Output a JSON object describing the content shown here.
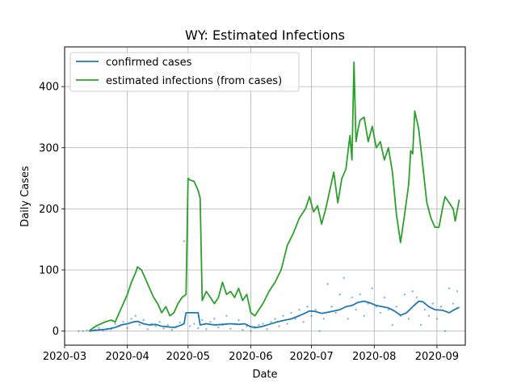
{
  "chart_data": {
    "type": "line",
    "title": "WY: Estimated Infections",
    "xlabel": "Date",
    "ylabel": "Daily Cases",
    "xlim": [
      "2020-03-01",
      "2020-09-15"
    ],
    "ylim": [
      -23,
      465
    ],
    "x_ticks": [
      "2020-03",
      "2020-04",
      "2020-05",
      "2020-06",
      "2020-07",
      "2020-08",
      "2020-09"
    ],
    "x_tick_dates": [
      "2020-03-01",
      "2020-04-01",
      "2020-05-01",
      "2020-06-01",
      "2020-07-01",
      "2020-08-01",
      "2020-09-01"
    ],
    "y_ticks": [
      0,
      100,
      200,
      300,
      400
    ],
    "grid": true,
    "legend_position": "upper-left",
    "colors": {
      "confirmed": "#1f77b4",
      "estimated": "#2ca02c"
    },
    "series": [
      {
        "name": "confirmed cases",
        "color": "#1f77b4",
        "points": [
          [
            "2020-03-13",
            0
          ],
          [
            "2020-03-15",
            1
          ],
          [
            "2020-03-18",
            2
          ],
          [
            "2020-03-22",
            3
          ],
          [
            "2020-03-26",
            6
          ],
          [
            "2020-03-29",
            10
          ],
          [
            "2020-04-01",
            12
          ],
          [
            "2020-04-04",
            15
          ],
          [
            "2020-04-06",
            16
          ],
          [
            "2020-04-09",
            12
          ],
          [
            "2020-04-12",
            10
          ],
          [
            "2020-04-15",
            11
          ],
          [
            "2020-04-18",
            8
          ],
          [
            "2020-04-21",
            7
          ],
          [
            "2020-04-24",
            6
          ],
          [
            "2020-04-27",
            9
          ],
          [
            "2020-04-29",
            12
          ],
          [
            "2020-04-30",
            30
          ],
          [
            "2020-05-03",
            30
          ],
          [
            "2020-05-06",
            30
          ],
          [
            "2020-05-07",
            10
          ],
          [
            "2020-05-10",
            12
          ],
          [
            "2020-05-14",
            10
          ],
          [
            "2020-05-18",
            11
          ],
          [
            "2020-05-22",
            12
          ],
          [
            "2020-05-26",
            11
          ],
          [
            "2020-05-29",
            12
          ],
          [
            "2020-06-01",
            7
          ],
          [
            "2020-06-04",
            6
          ],
          [
            "2020-06-07",
            8
          ],
          [
            "2020-06-10",
            11
          ],
          [
            "2020-06-14",
            15
          ],
          [
            "2020-06-18",
            18
          ],
          [
            "2020-06-21",
            20
          ],
          [
            "2020-06-24",
            24
          ],
          [
            "2020-06-27",
            28
          ],
          [
            "2020-06-30",
            33
          ],
          [
            "2020-07-03",
            32
          ],
          [
            "2020-07-06",
            29
          ],
          [
            "2020-07-09",
            31
          ],
          [
            "2020-07-12",
            33
          ],
          [
            "2020-07-15",
            35
          ],
          [
            "2020-07-18",
            40
          ],
          [
            "2020-07-21",
            42
          ],
          [
            "2020-07-24",
            47
          ],
          [
            "2020-07-27",
            49
          ],
          [
            "2020-07-30",
            46
          ],
          [
            "2020-08-02",
            42
          ],
          [
            "2020-08-05",
            40
          ],
          [
            "2020-08-08",
            38
          ],
          [
            "2020-08-11",
            33
          ],
          [
            "2020-08-14",
            26
          ],
          [
            "2020-08-17",
            30
          ],
          [
            "2020-08-20",
            40
          ],
          [
            "2020-08-23",
            49
          ],
          [
            "2020-08-25",
            48
          ],
          [
            "2020-08-28",
            40
          ],
          [
            "2020-08-31",
            35
          ],
          [
            "2020-09-04",
            34
          ],
          [
            "2020-09-07",
            30
          ],
          [
            "2020-09-09",
            34
          ],
          [
            "2020-09-12",
            39
          ]
        ]
      },
      {
        "name": "estimated infections (from cases)",
        "color": "#2ca02c",
        "points": [
          [
            "2020-03-13",
            0
          ],
          [
            "2020-03-15",
            5
          ],
          [
            "2020-03-17",
            9
          ],
          [
            "2020-03-19",
            12
          ],
          [
            "2020-03-21",
            15
          ],
          [
            "2020-03-24",
            18
          ],
          [
            "2020-03-26",
            15
          ],
          [
            "2020-03-28",
            30
          ],
          [
            "2020-03-30",
            45
          ],
          [
            "2020-04-01",
            60
          ],
          [
            "2020-04-03",
            80
          ],
          [
            "2020-04-05",
            95
          ],
          [
            "2020-04-06",
            105
          ],
          [
            "2020-04-08",
            100
          ],
          [
            "2020-04-10",
            85
          ],
          [
            "2020-04-12",
            70
          ],
          [
            "2020-04-14",
            55
          ],
          [
            "2020-04-16",
            45
          ],
          [
            "2020-04-18",
            30
          ],
          [
            "2020-04-20",
            40
          ],
          [
            "2020-04-22",
            25
          ],
          [
            "2020-04-24",
            30
          ],
          [
            "2020-04-26",
            45
          ],
          [
            "2020-04-28",
            55
          ],
          [
            "2020-04-30",
            60
          ],
          [
            "2020-05-01",
            250
          ],
          [
            "2020-05-02",
            247
          ],
          [
            "2020-05-04",
            245
          ],
          [
            "2020-05-06",
            230
          ],
          [
            "2020-05-07",
            217
          ],
          [
            "2020-05-08",
            50
          ],
          [
            "2020-05-10",
            65
          ],
          [
            "2020-05-12",
            55
          ],
          [
            "2020-05-14",
            45
          ],
          [
            "2020-05-16",
            55
          ],
          [
            "2020-05-18",
            80
          ],
          [
            "2020-05-20",
            60
          ],
          [
            "2020-05-22",
            65
          ],
          [
            "2020-05-24",
            55
          ],
          [
            "2020-05-26",
            70
          ],
          [
            "2020-05-28",
            50
          ],
          [
            "2020-05-30",
            60
          ],
          [
            "2020-06-01",
            30
          ],
          [
            "2020-06-03",
            25
          ],
          [
            "2020-06-05",
            35
          ],
          [
            "2020-06-07",
            45
          ],
          [
            "2020-06-10",
            65
          ],
          [
            "2020-06-13",
            80
          ],
          [
            "2020-06-16",
            100
          ],
          [
            "2020-06-19",
            140
          ],
          [
            "2020-06-22",
            160
          ],
          [
            "2020-06-25",
            185
          ],
          [
            "2020-06-28",
            200
          ],
          [
            "2020-06-30",
            220
          ],
          [
            "2020-07-02",
            195
          ],
          [
            "2020-07-04",
            205
          ],
          [
            "2020-07-06",
            175
          ],
          [
            "2020-07-08",
            200
          ],
          [
            "2020-07-10",
            230
          ],
          [
            "2020-07-12",
            260
          ],
          [
            "2020-07-14",
            210
          ],
          [
            "2020-07-16",
            250
          ],
          [
            "2020-07-18",
            265
          ],
          [
            "2020-07-20",
            320
          ],
          [
            "2020-07-21",
            280
          ],
          [
            "2020-07-22",
            440
          ],
          [
            "2020-07-23",
            310
          ],
          [
            "2020-07-24",
            330
          ],
          [
            "2020-07-25",
            345
          ],
          [
            "2020-07-27",
            350
          ],
          [
            "2020-07-29",
            310
          ],
          [
            "2020-07-31",
            335
          ],
          [
            "2020-08-02",
            300
          ],
          [
            "2020-08-04",
            310
          ],
          [
            "2020-08-06",
            280
          ],
          [
            "2020-08-08",
            300
          ],
          [
            "2020-08-10",
            260
          ],
          [
            "2020-08-12",
            190
          ],
          [
            "2020-08-14",
            145
          ],
          [
            "2020-08-16",
            190
          ],
          [
            "2020-08-18",
            240
          ],
          [
            "2020-08-19",
            295
          ],
          [
            "2020-08-20",
            290
          ],
          [
            "2020-08-21",
            360
          ],
          [
            "2020-08-23",
            330
          ],
          [
            "2020-08-25",
            270
          ],
          [
            "2020-08-27",
            210
          ],
          [
            "2020-08-29",
            185
          ],
          [
            "2020-08-31",
            170
          ],
          [
            "2020-09-02",
            170
          ],
          [
            "2020-09-04",
            205
          ],
          [
            "2020-09-05",
            220
          ],
          [
            "2020-09-07",
            210
          ],
          [
            "2020-09-09",
            200
          ],
          [
            "2020-09-10",
            180
          ],
          [
            "2020-09-12",
            215
          ]
        ]
      }
    ],
    "scatter": {
      "color": "#1f77b4",
      "points": [
        [
          "2020-03-08",
          0
        ],
        [
          "2020-03-10",
          0
        ],
        [
          "2020-03-12",
          1
        ],
        [
          "2020-03-14",
          0
        ],
        [
          "2020-03-16",
          2
        ],
        [
          "2020-03-18",
          5
        ],
        [
          "2020-03-20",
          1
        ],
        [
          "2020-03-22",
          4
        ],
        [
          "2020-03-24",
          3
        ],
        [
          "2020-03-26",
          12
        ],
        [
          "2020-03-28",
          8
        ],
        [
          "2020-03-30",
          15
        ],
        [
          "2020-04-01",
          5
        ],
        [
          "2020-04-03",
          20
        ],
        [
          "2020-04-05",
          25
        ],
        [
          "2020-04-07",
          10
        ],
        [
          "2020-04-09",
          18
        ],
        [
          "2020-04-11",
          3
        ],
        [
          "2020-04-13",
          12
        ],
        [
          "2020-04-15",
          8
        ],
        [
          "2020-04-17",
          15
        ],
        [
          "2020-04-19",
          4
        ],
        [
          "2020-04-21",
          10
        ],
        [
          "2020-04-23",
          2
        ],
        [
          "2020-04-25",
          6
        ],
        [
          "2020-04-27",
          14
        ],
        [
          "2020-04-29",
          147
        ],
        [
          "2020-05-02",
          8
        ],
        [
          "2020-05-04",
          12
        ],
        [
          "2020-05-06",
          5
        ],
        [
          "2020-05-08",
          18
        ],
        [
          "2020-05-10",
          3
        ],
        [
          "2020-05-12",
          15
        ],
        [
          "2020-05-14",
          20
        ],
        [
          "2020-05-16",
          6
        ],
        [
          "2020-05-18",
          10
        ],
        [
          "2020-05-20",
          25
        ],
        [
          "2020-05-22",
          4
        ],
        [
          "2020-05-24",
          12
        ],
        [
          "2020-05-26",
          18
        ],
        [
          "2020-05-28",
          2
        ],
        [
          "2020-05-30",
          8
        ],
        [
          "2020-06-01",
          0
        ],
        [
          "2020-06-03",
          5
        ],
        [
          "2020-06-05",
          10
        ],
        [
          "2020-06-07",
          12
        ],
        [
          "2020-06-09",
          3
        ],
        [
          "2020-06-11",
          15
        ],
        [
          "2020-06-13",
          20
        ],
        [
          "2020-06-15",
          8
        ],
        [
          "2020-06-17",
          25
        ],
        [
          "2020-06-19",
          12
        ],
        [
          "2020-06-21",
          30
        ],
        [
          "2020-06-23",
          20
        ],
        [
          "2020-06-25",
          35
        ],
        [
          "2020-06-27",
          15
        ],
        [
          "2020-06-29",
          40
        ],
        [
          "2020-07-01",
          25
        ],
        [
          "2020-07-03",
          35
        ],
        [
          "2020-07-05",
          0
        ],
        [
          "2020-07-07",
          20
        ],
        [
          "2020-07-09",
          77
        ],
        [
          "2020-07-11",
          40
        ],
        [
          "2020-07-13",
          30
        ],
        [
          "2020-07-15",
          60
        ],
        [
          "2020-07-17",
          87
        ],
        [
          "2020-07-19",
          20
        ],
        [
          "2020-07-21",
          55
        ],
        [
          "2020-07-23",
          35
        ],
        [
          "2020-07-25",
          60
        ],
        [
          "2020-07-27",
          25
        ],
        [
          "2020-07-29",
          45
        ],
        [
          "2020-07-31",
          70
        ],
        [
          "2020-08-02",
          40
        ],
        [
          "2020-08-04",
          30
        ],
        [
          "2020-08-06",
          55
        ],
        [
          "2020-08-08",
          35
        ],
        [
          "2020-08-10",
          10
        ],
        [
          "2020-08-12",
          40
        ],
        [
          "2020-08-14",
          25
        ],
        [
          "2020-08-16",
          60
        ],
        [
          "2020-08-18",
          20
        ],
        [
          "2020-08-20",
          65
        ],
        [
          "2020-08-22",
          55
        ],
        [
          "2020-08-24",
          10
        ],
        [
          "2020-08-26",
          35
        ],
        [
          "2020-08-28",
          25
        ],
        [
          "2020-08-30",
          45
        ],
        [
          "2020-09-01",
          20
        ],
        [
          "2020-09-03",
          40
        ],
        [
          "2020-09-05",
          0
        ],
        [
          "2020-09-07",
          70
        ],
        [
          "2020-09-09",
          45
        ],
        [
          "2020-09-11",
          65
        ]
      ]
    }
  }
}
